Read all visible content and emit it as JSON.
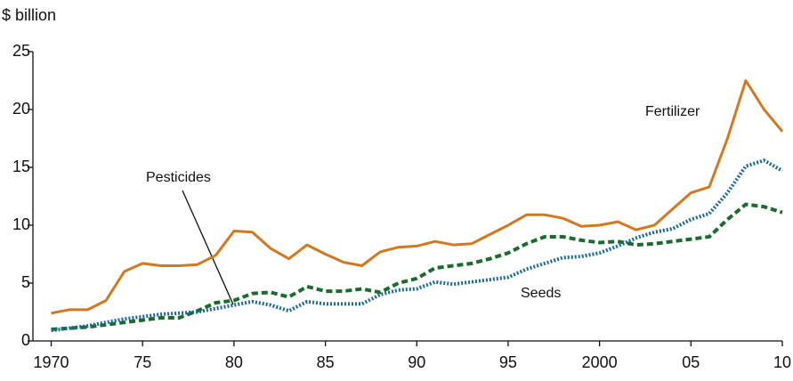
{
  "chart_data": {
    "type": "line",
    "y_axis_label": "$ billion",
    "x": [
      1970,
      1971,
      1972,
      1973,
      1974,
      1975,
      1976,
      1977,
      1978,
      1979,
      1980,
      1981,
      1982,
      1983,
      1984,
      1985,
      1986,
      1987,
      1988,
      1989,
      1990,
      1991,
      1992,
      1993,
      1994,
      1995,
      1996,
      1997,
      1998,
      1999,
      2000,
      2001,
      2002,
      2003,
      2004,
      2005,
      2006,
      2007,
      2008,
      2009,
      2010
    ],
    "series": [
      {
        "name": "Fertilizer",
        "color": "#d4781f",
        "style": "solid",
        "values": [
          2.4,
          2.7,
          2.7,
          3.5,
          6.0,
          6.7,
          6.5,
          6.5,
          6.6,
          7.4,
          9.5,
          9.4,
          8.0,
          7.1,
          8.3,
          7.5,
          6.8,
          6.5,
          7.7,
          8.1,
          8.2,
          8.6,
          8.3,
          8.4,
          9.2,
          10.0,
          10.9,
          10.9,
          10.6,
          9.9,
          10.0,
          10.3,
          9.6,
          10.0,
          11.4,
          12.8,
          13.3,
          17.5,
          22.5,
          20.0,
          18.1
        ]
      },
      {
        "name": "Pesticides",
        "color": "#1a6b2e",
        "style": "dashed",
        "values": [
          1.0,
          1.1,
          1.2,
          1.4,
          1.6,
          1.8,
          2.0,
          2.0,
          2.6,
          3.3,
          3.5,
          4.1,
          4.2,
          3.8,
          4.7,
          4.3,
          4.3,
          4.5,
          4.2,
          5.0,
          5.4,
          6.3,
          6.5,
          6.7,
          7.1,
          7.6,
          8.4,
          9.0,
          9.0,
          8.7,
          8.5,
          8.6,
          8.3,
          8.4,
          8.6,
          8.8,
          9.0,
          10.5,
          11.8,
          11.6,
          11.1
        ]
      },
      {
        "name": "Seeds",
        "color": "#1a6b94",
        "style": "dotted",
        "values": [
          0.9,
          1.1,
          1.3,
          1.6,
          1.9,
          2.1,
          2.3,
          2.4,
          2.5,
          2.8,
          3.1,
          3.4,
          3.1,
          2.6,
          3.4,
          3.2,
          3.2,
          3.2,
          4.0,
          4.4,
          4.5,
          5.1,
          4.9,
          5.1,
          5.3,
          5.5,
          6.2,
          6.7,
          7.2,
          7.3,
          7.6,
          8.2,
          8.9,
          9.4,
          9.7,
          10.5,
          11.0,
          12.8,
          15.1,
          15.6,
          14.7
        ]
      }
    ],
    "xlim": [
      1969,
      2010
    ],
    "xticks": [
      1970,
      {
        "value": 1975,
        "label": "75"
      },
      {
        "value": 1980,
        "label": "80"
      },
      {
        "value": 1985,
        "label": "85"
      },
      {
        "value": 1990,
        "label": "90"
      },
      {
        "value": 1995,
        "label": "95"
      },
      2000,
      {
        "value": 2005,
        "label": "05"
      },
      {
        "value": 2010,
        "label": "10"
      }
    ],
    "ylim": [
      0,
      25
    ],
    "yticks": [
      0,
      5,
      10,
      15,
      20,
      25
    ],
    "grid": false
  }
}
